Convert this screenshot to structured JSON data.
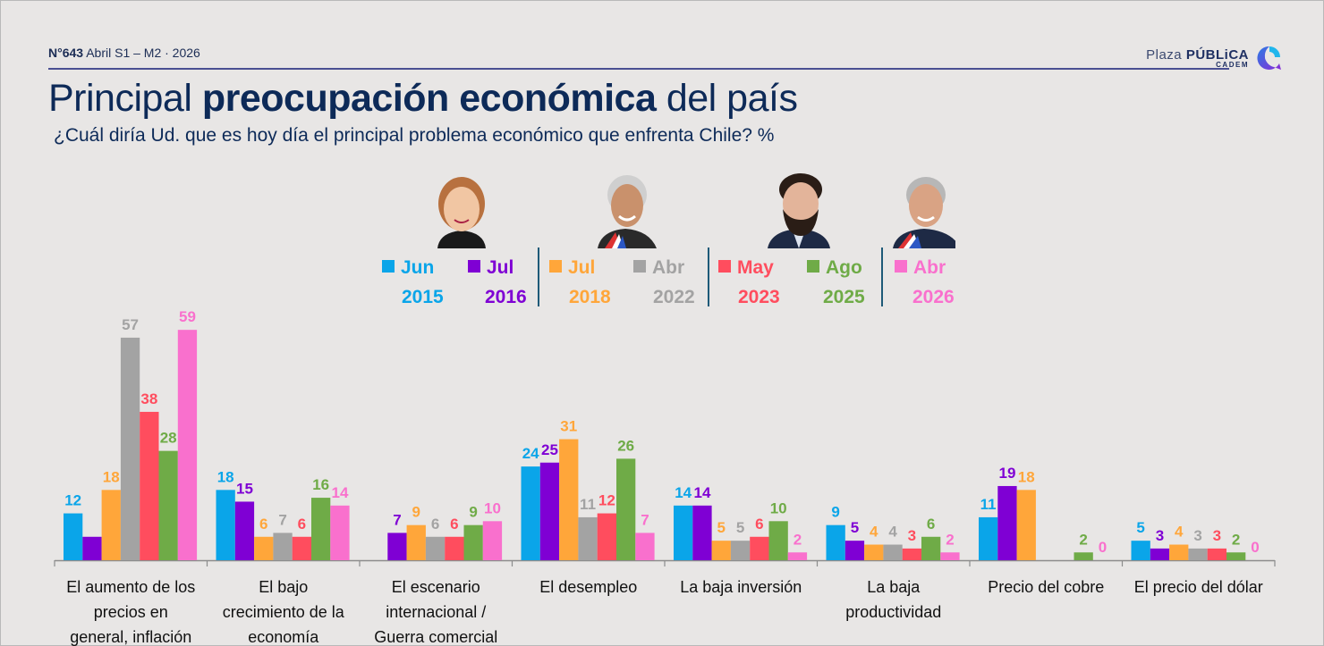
{
  "header": {
    "edition_number": "N°643",
    "edition_rest": "Abril S1 – M2 · 2026",
    "brand_light": "Plaza",
    "brand_bold": "PÚBLiCA",
    "brand_sub": "CADEM",
    "title_pre": "Principal",
    "title_bold": "preocupación económica",
    "title_post": "del país",
    "subtitle": "¿Cuál diría Ud. que es hoy día el principal problema económico que enfrenta Chile? %"
  },
  "portraits": [
    {
      "name": "portrait-bachelet",
      "icon": "person-portrait-icon"
    },
    {
      "name": "portrait-pinera",
      "icon": "person-portrait-icon"
    },
    {
      "name": "portrait-boric",
      "icon": "person-portrait-icon"
    },
    {
      "name": "portrait-kast",
      "icon": "person-portrait-icon"
    }
  ],
  "legend": [
    {
      "month": "Jun",
      "year": "2015",
      "color": "#0aa5e9"
    },
    {
      "month": "Jul",
      "year": "2016",
      "color": "#7f00d4"
    },
    {
      "month": "Jul",
      "year": "2018",
      "color": "#ffa63a"
    },
    {
      "month": "Abr",
      "year": "2022",
      "color": "#a3a3a3"
    },
    {
      "month": "May",
      "year": "2023",
      "color": "#ff4d5e"
    },
    {
      "month": "Ago",
      "year": "2025",
      "color": "#6fab47"
    },
    {
      "month": "Abr",
      "year": "2026",
      "color": "#f970cd"
    }
  ],
  "chart_data": {
    "type": "bar",
    "title": "Principal preocupación económica del país",
    "subtitle": "¿Cuál diría Ud. que es hoy día el principal problema económico que enfrenta Chile? %",
    "xlabel": "",
    "ylabel": "%",
    "ylim": [
      0,
      60
    ],
    "grid": false,
    "legend_position": "top-center",
    "categories": [
      "El aumento de los precios en general, inflación",
      "El bajo crecimiento de la economía",
      "El escenario internacional / Guerra comercial",
      "El desempleo",
      "La baja inversión",
      "La baja productividad",
      "Precio del cobre",
      "El precio del dólar"
    ],
    "series": [
      {
        "name": "Jun 2015",
        "color": "#0aa5e9",
        "values": [
          12,
          18,
          null,
          24,
          14,
          9,
          11,
          5
        ]
      },
      {
        "name": "Jul 2016",
        "color": "#7f00d4",
        "values": [
          6,
          15,
          7,
          25,
          14,
          5,
          19,
          3
        ]
      },
      {
        "name": "Jul 2018",
        "color": "#ffa63a",
        "values": [
          18,
          6,
          9,
          31,
          5,
          4,
          18,
          4
        ]
      },
      {
        "name": "Abr 2022",
        "color": "#a3a3a3",
        "values": [
          57,
          7,
          6,
          11,
          5,
          4,
          null,
          3
        ]
      },
      {
        "name": "May 2023",
        "color": "#ff4d5e",
        "values": [
          38,
          6,
          6,
          12,
          6,
          3,
          null,
          3
        ]
      },
      {
        "name": "Ago 2025",
        "color": "#6fab47",
        "values": [
          28,
          16,
          9,
          26,
          10,
          6,
          2,
          2
        ]
      },
      {
        "name": "Abr 2026",
        "color": "#f970cd",
        "values": [
          59,
          14,
          10,
          7,
          2,
          2,
          0,
          0
        ]
      }
    ],
    "hidden_labels": [
      [
        1,
        0
      ]
    ],
    "category_label_lines": [
      [
        "El aumento de los",
        "precios en",
        "general, inflación"
      ],
      [
        "El bajo",
        "crecimiento de la",
        "economía"
      ],
      [
        "El escenario",
        "internacional /",
        "Guerra comercial"
      ],
      [
        "El desempleo"
      ],
      [
        "La baja inversión"
      ],
      [
        "La baja",
        "productividad"
      ],
      [
        "Precio del cobre"
      ],
      [
        "El precio del dólar"
      ]
    ]
  }
}
